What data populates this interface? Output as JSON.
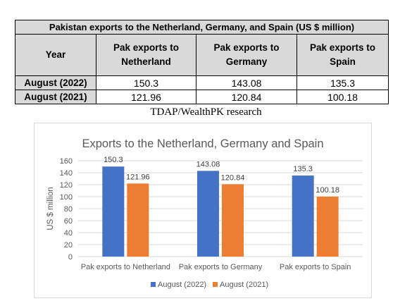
{
  "table": {
    "title": "Pakistan exports to the Netherland, Germany, and Spain (US $ million)",
    "headers": [
      "Year",
      "Pak exports to Netherland",
      "Pak exports to Germany",
      "Pak exports to Spain"
    ],
    "rows": [
      {
        "year": "August (2022)",
        "netherland": "150.3",
        "germany": "143.08",
        "spain": "135.3"
      },
      {
        "year": "August (2021)",
        "netherland": "121.96",
        "germany": "120.84",
        "spain": "100.18"
      }
    ]
  },
  "caption": "TDAP/WealthPK research",
  "chart_data": {
    "type": "bar",
    "title": "Exports to the Netherland, Germany and Spain",
    "ylabel": "US $ million",
    "xlabel": "",
    "categories": [
      "Pak exports to Netherland",
      "Pak exports to Germany",
      "Pak exports to Spain"
    ],
    "series": [
      {
        "name": "August (2022)",
        "values": [
          150.3,
          143.08,
          135.3
        ],
        "labels": [
          "150.3",
          "143.08",
          "135.3"
        ],
        "color": "#4472c4"
      },
      {
        "name": "August (2021)",
        "values": [
          121.96,
          120.84,
          100.18
        ],
        "labels": [
          "121.96",
          "120.84",
          "100.18"
        ],
        "color": "#ed7d31"
      }
    ],
    "ylim": [
      0,
      160
    ],
    "yticks": [
      "0",
      "20",
      "40",
      "60",
      "80",
      "100",
      "120",
      "140",
      "160"
    ],
    "grid": true,
    "legend": "bottom"
  }
}
